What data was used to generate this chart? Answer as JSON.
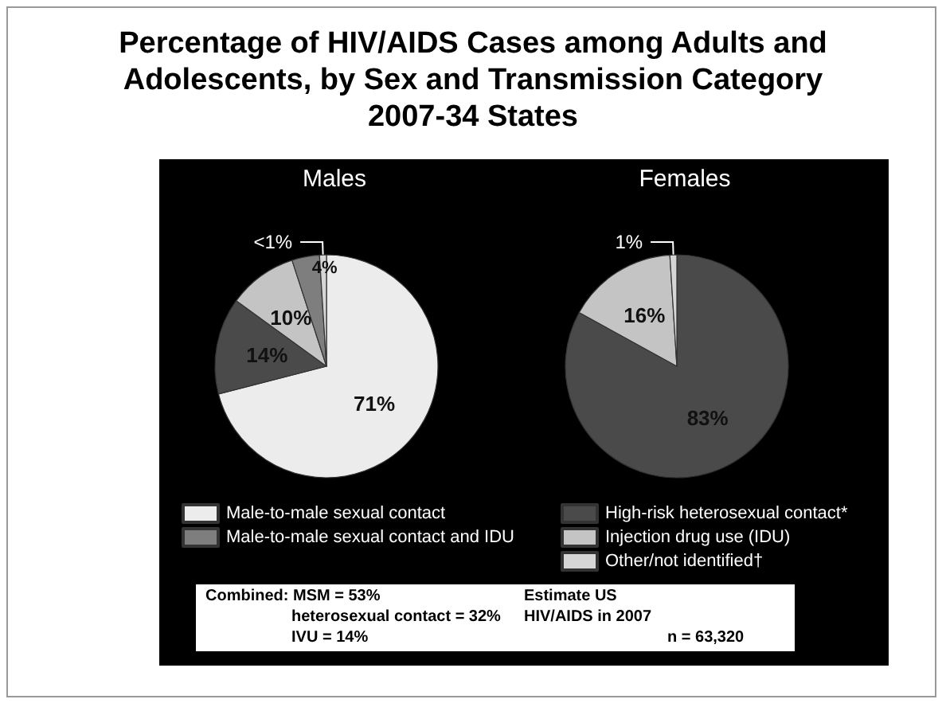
{
  "chart_data": {
    "type": "pie",
    "title": "Percentage of HIV/AIDS Cases among Adults and Adolescents, by Sex and Transmission Category 2007-34 States",
    "categories": [
      "Male-to-male sexual contact",
      "High-risk heterosexual contact*",
      "Injection drug use (IDU)",
      "Male-to-male sexual contact and IDU",
      "Other/not identified†"
    ],
    "colors": [
      "#ececec",
      "#4a4a4a",
      "#c4c4c4",
      "#7e7e7e",
      "#d6d6d6"
    ],
    "series": [
      {
        "name": "Males",
        "values": [
          71,
          14,
          10,
          4,
          1
        ],
        "value_labels": [
          "71%",
          "14%",
          "10%",
          "4%",
          "<1%"
        ]
      },
      {
        "name": "Females",
        "values": [
          null,
          83,
          16,
          null,
          1
        ],
        "value_labels": [
          null,
          "83%",
          "16%",
          null,
          "1%"
        ]
      }
    ],
    "legend": "bottom",
    "annotations": [
      "Combined:  MSM = 53%",
      "heterosexual contact = 32%",
      "IVU = 14%",
      "Estimate US",
      "HIV/AIDS in 2007",
      "n = 63,320"
    ]
  }
}
